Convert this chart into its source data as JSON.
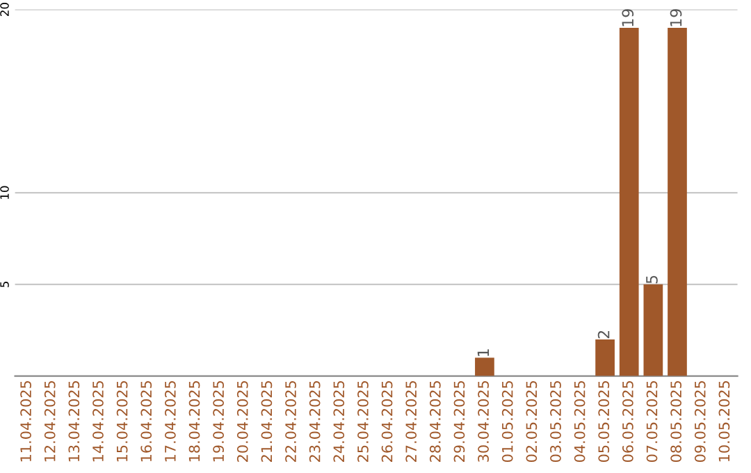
{
  "chart_data": {
    "type": "bar",
    "categories": [
      "11.04.2025",
      "12.04.2025",
      "13.04.2025",
      "14.04.2025",
      "15.04.2025",
      "16.04.2025",
      "17.04.2025",
      "18.04.2025",
      "19.04.2025",
      "20.04.2025",
      "21.04.2025",
      "22.04.2025",
      "23.04.2025",
      "24.04.2025",
      "25.04.2025",
      "26.04.2025",
      "27.04.2025",
      "28.04.2025",
      "29.04.2025",
      "30.04.2025",
      "01.05.2025",
      "02.05.2025",
      "03.05.2025",
      "04.05.2025",
      "05.05.2025",
      "06.05.2025",
      "07.05.2025",
      "08.05.2025",
      "09.05.2025",
      "10.05.2025"
    ],
    "values": [
      0,
      0,
      0,
      0,
      0,
      0,
      0,
      0,
      0,
      0,
      0,
      0,
      0,
      0,
      0,
      0,
      0,
      0,
      0,
      1,
      0,
      0,
      0,
      0,
      2,
      19,
      5,
      19,
      0,
      0
    ],
    "value_labels": [
      null,
      null,
      null,
      null,
      null,
      null,
      null,
      null,
      null,
      null,
      null,
      null,
      null,
      null,
      null,
      null,
      null,
      null,
      null,
      "1",
      null,
      null,
      null,
      null,
      "2",
      "19",
      "5",
      "19",
      null,
      null
    ],
    "color": "#a0582a",
    "ylim": [
      0,
      20
    ],
    "yticks": [
      5,
      10,
      20
    ],
    "grid": "y",
    "legend": false
  }
}
